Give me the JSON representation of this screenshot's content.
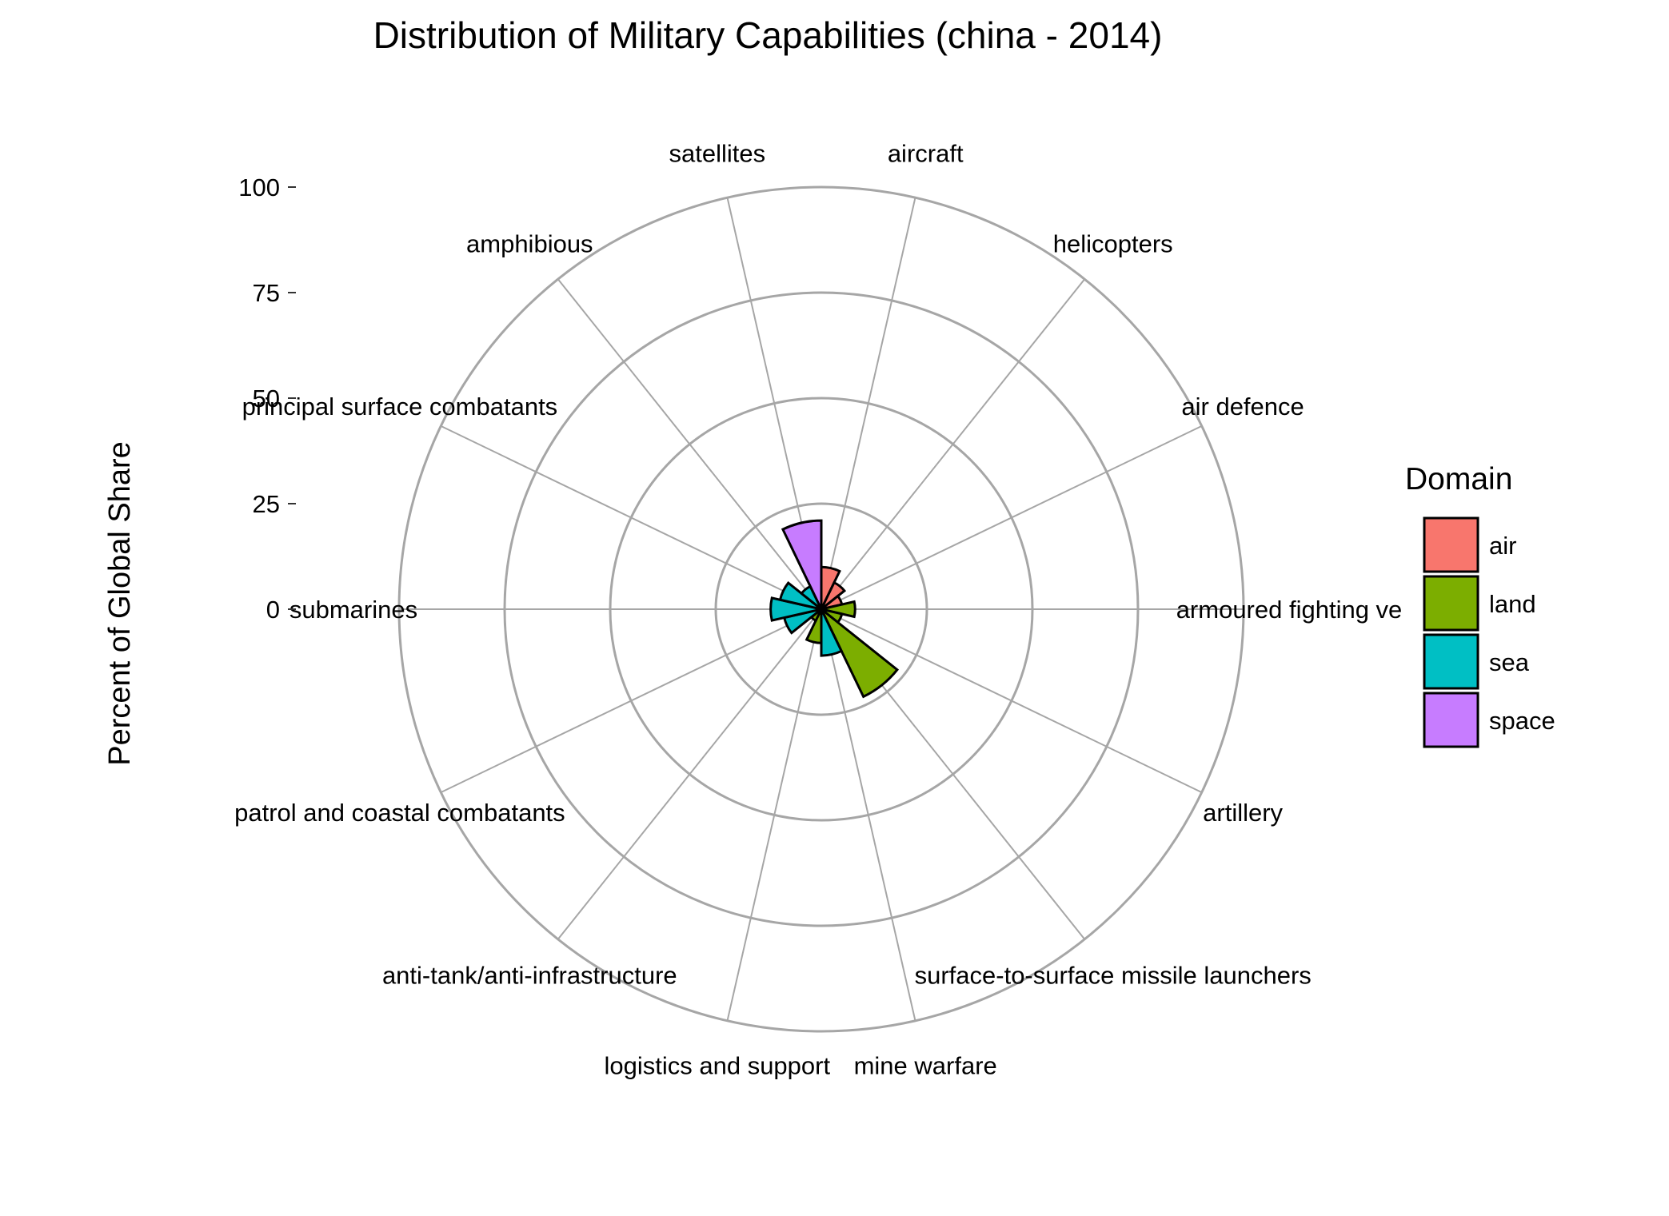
{
  "chart_data": {
    "type": "bar",
    "coord": "polar",
    "title": "Distribution of Military Capabilities (china - 2014)",
    "xlabel": "",
    "ylabel": "Percent of Global Share",
    "ylim": [
      0,
      100
    ],
    "y_ticks": [
      "0",
      "25",
      "50",
      "75",
      "100"
    ],
    "grid": true,
    "legend_position": "right",
    "legend_title": "Domain",
    "categories": [
      "aircraft",
      "helicopters",
      "air defence",
      "armoured fighting vehicles",
      "artillery",
      "surface-to-surface missile launchers",
      "mine warfare",
      "logistics and support",
      "anti-tank/anti-infrastructure",
      "patrol and coastal combatants",
      "submarines",
      "principal surface combatants",
      "amphibious",
      "satellites"
    ],
    "category_labels": [
      "aircraft",
      "helicopters",
      "air defence",
      "armoured fighting ve",
      "artillery",
      "surface-to-surface missile launchers",
      "mine warfare",
      "logistics and support",
      "anti-tank/anti-infrastructure",
      "patrol and coastal combatants",
      "submarines",
      "principal surface combatants",
      "amphibious",
      "satellites"
    ],
    "values": [
      10,
      7,
      5,
      8,
      5,
      23,
      11,
      8,
      3,
      9,
      12,
      10,
      6,
      21
    ],
    "domains": [
      "air",
      "air",
      "air",
      "land",
      "land",
      "land",
      "sea",
      "land",
      "land",
      "sea",
      "sea",
      "sea",
      "sea",
      "space"
    ],
    "legend": [
      {
        "name": "air",
        "color": "#F8766D"
      },
      {
        "name": "land",
        "color": "#7CAE00"
      },
      {
        "name": "sea",
        "color": "#00BFC4"
      },
      {
        "name": "space",
        "color": "#C77CFF"
      }
    ]
  }
}
